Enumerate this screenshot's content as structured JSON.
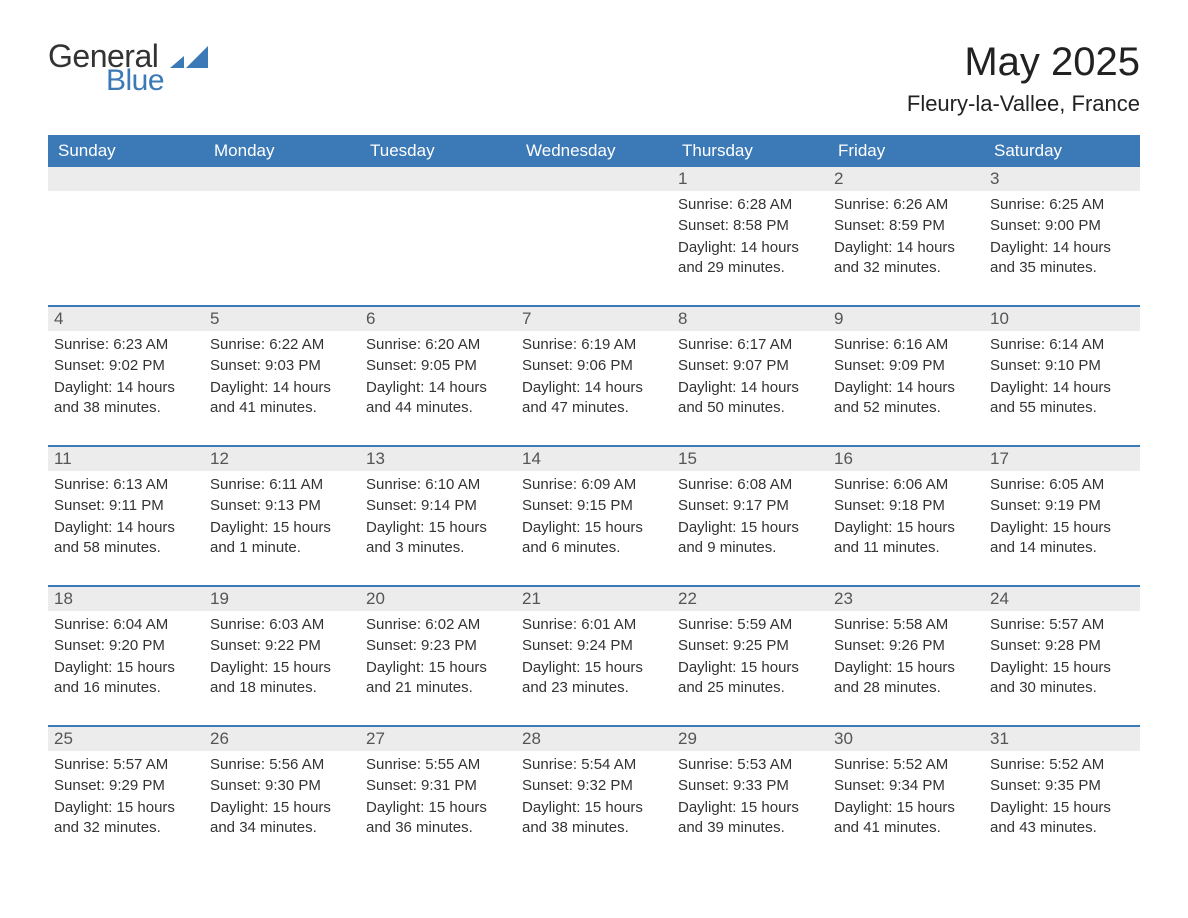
{
  "logo": {
    "word1": "General",
    "word2": "Blue"
  },
  "header": {
    "title": "May 2025",
    "location": "Fleury-la-Vallee, France"
  },
  "colors": {
    "brand_blue": "#3b79b7",
    "header_row_bg": "#3b79b7",
    "header_row_text": "#ffffff",
    "daynum_bg": "#ececec",
    "daynum_text": "#555555",
    "body_text": "#333333",
    "week_divider": "#3b79b7",
    "background": "#ffffff"
  },
  "typography": {
    "title_fontsize_pt": 30,
    "location_fontsize_pt": 16,
    "weekday_fontsize_pt": 13,
    "daynum_fontsize_pt": 13,
    "body_fontsize_pt": 11,
    "font_family": "Arial"
  },
  "calendar": {
    "type": "table",
    "columns": 7,
    "rows": 5,
    "weekdays": [
      "Sunday",
      "Monday",
      "Tuesday",
      "Wednesday",
      "Thursday",
      "Friday",
      "Saturday"
    ],
    "days": [
      {
        "n": "",
        "sunrise": "",
        "sunset": "",
        "daylight": ""
      },
      {
        "n": "",
        "sunrise": "",
        "sunset": "",
        "daylight": ""
      },
      {
        "n": "",
        "sunrise": "",
        "sunset": "",
        "daylight": ""
      },
      {
        "n": "",
        "sunrise": "",
        "sunset": "",
        "daylight": ""
      },
      {
        "n": "1",
        "sunrise": "Sunrise: 6:28 AM",
        "sunset": "Sunset: 8:58 PM",
        "daylight": "Daylight: 14 hours and 29 minutes."
      },
      {
        "n": "2",
        "sunrise": "Sunrise: 6:26 AM",
        "sunset": "Sunset: 8:59 PM",
        "daylight": "Daylight: 14 hours and 32 minutes."
      },
      {
        "n": "3",
        "sunrise": "Sunrise: 6:25 AM",
        "sunset": "Sunset: 9:00 PM",
        "daylight": "Daylight: 14 hours and 35 minutes."
      },
      {
        "n": "4",
        "sunrise": "Sunrise: 6:23 AM",
        "sunset": "Sunset: 9:02 PM",
        "daylight": "Daylight: 14 hours and 38 minutes."
      },
      {
        "n": "5",
        "sunrise": "Sunrise: 6:22 AM",
        "sunset": "Sunset: 9:03 PM",
        "daylight": "Daylight: 14 hours and 41 minutes."
      },
      {
        "n": "6",
        "sunrise": "Sunrise: 6:20 AM",
        "sunset": "Sunset: 9:05 PM",
        "daylight": "Daylight: 14 hours and 44 minutes."
      },
      {
        "n": "7",
        "sunrise": "Sunrise: 6:19 AM",
        "sunset": "Sunset: 9:06 PM",
        "daylight": "Daylight: 14 hours and 47 minutes."
      },
      {
        "n": "8",
        "sunrise": "Sunrise: 6:17 AM",
        "sunset": "Sunset: 9:07 PM",
        "daylight": "Daylight: 14 hours and 50 minutes."
      },
      {
        "n": "9",
        "sunrise": "Sunrise: 6:16 AM",
        "sunset": "Sunset: 9:09 PM",
        "daylight": "Daylight: 14 hours and 52 minutes."
      },
      {
        "n": "10",
        "sunrise": "Sunrise: 6:14 AM",
        "sunset": "Sunset: 9:10 PM",
        "daylight": "Daylight: 14 hours and 55 minutes."
      },
      {
        "n": "11",
        "sunrise": "Sunrise: 6:13 AM",
        "sunset": "Sunset: 9:11 PM",
        "daylight": "Daylight: 14 hours and 58 minutes."
      },
      {
        "n": "12",
        "sunrise": "Sunrise: 6:11 AM",
        "sunset": "Sunset: 9:13 PM",
        "daylight": "Daylight: 15 hours and 1 minute."
      },
      {
        "n": "13",
        "sunrise": "Sunrise: 6:10 AM",
        "sunset": "Sunset: 9:14 PM",
        "daylight": "Daylight: 15 hours and 3 minutes."
      },
      {
        "n": "14",
        "sunrise": "Sunrise: 6:09 AM",
        "sunset": "Sunset: 9:15 PM",
        "daylight": "Daylight: 15 hours and 6 minutes."
      },
      {
        "n": "15",
        "sunrise": "Sunrise: 6:08 AM",
        "sunset": "Sunset: 9:17 PM",
        "daylight": "Daylight: 15 hours and 9 minutes."
      },
      {
        "n": "16",
        "sunrise": "Sunrise: 6:06 AM",
        "sunset": "Sunset: 9:18 PM",
        "daylight": "Daylight: 15 hours and 11 minutes."
      },
      {
        "n": "17",
        "sunrise": "Sunrise: 6:05 AM",
        "sunset": "Sunset: 9:19 PM",
        "daylight": "Daylight: 15 hours and 14 minutes."
      },
      {
        "n": "18",
        "sunrise": "Sunrise: 6:04 AM",
        "sunset": "Sunset: 9:20 PM",
        "daylight": "Daylight: 15 hours and 16 minutes."
      },
      {
        "n": "19",
        "sunrise": "Sunrise: 6:03 AM",
        "sunset": "Sunset: 9:22 PM",
        "daylight": "Daylight: 15 hours and 18 minutes."
      },
      {
        "n": "20",
        "sunrise": "Sunrise: 6:02 AM",
        "sunset": "Sunset: 9:23 PM",
        "daylight": "Daylight: 15 hours and 21 minutes."
      },
      {
        "n": "21",
        "sunrise": "Sunrise: 6:01 AM",
        "sunset": "Sunset: 9:24 PM",
        "daylight": "Daylight: 15 hours and 23 minutes."
      },
      {
        "n": "22",
        "sunrise": "Sunrise: 5:59 AM",
        "sunset": "Sunset: 9:25 PM",
        "daylight": "Daylight: 15 hours and 25 minutes."
      },
      {
        "n": "23",
        "sunrise": "Sunrise: 5:58 AM",
        "sunset": "Sunset: 9:26 PM",
        "daylight": "Daylight: 15 hours and 28 minutes."
      },
      {
        "n": "24",
        "sunrise": "Sunrise: 5:57 AM",
        "sunset": "Sunset: 9:28 PM",
        "daylight": "Daylight: 15 hours and 30 minutes."
      },
      {
        "n": "25",
        "sunrise": "Sunrise: 5:57 AM",
        "sunset": "Sunset: 9:29 PM",
        "daylight": "Daylight: 15 hours and 32 minutes."
      },
      {
        "n": "26",
        "sunrise": "Sunrise: 5:56 AM",
        "sunset": "Sunset: 9:30 PM",
        "daylight": "Daylight: 15 hours and 34 minutes."
      },
      {
        "n": "27",
        "sunrise": "Sunrise: 5:55 AM",
        "sunset": "Sunset: 9:31 PM",
        "daylight": "Daylight: 15 hours and 36 minutes."
      },
      {
        "n": "28",
        "sunrise": "Sunrise: 5:54 AM",
        "sunset": "Sunset: 9:32 PM",
        "daylight": "Daylight: 15 hours and 38 minutes."
      },
      {
        "n": "29",
        "sunrise": "Sunrise: 5:53 AM",
        "sunset": "Sunset: 9:33 PM",
        "daylight": "Daylight: 15 hours and 39 minutes."
      },
      {
        "n": "30",
        "sunrise": "Sunrise: 5:52 AM",
        "sunset": "Sunset: 9:34 PM",
        "daylight": "Daylight: 15 hours and 41 minutes."
      },
      {
        "n": "31",
        "sunrise": "Sunrise: 5:52 AM",
        "sunset": "Sunset: 9:35 PM",
        "daylight": "Daylight: 15 hours and 43 minutes."
      }
    ]
  }
}
